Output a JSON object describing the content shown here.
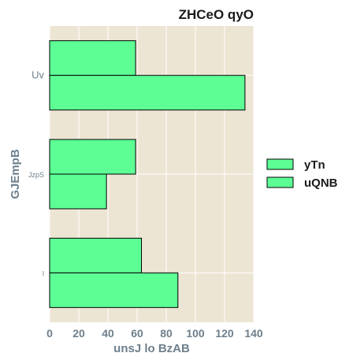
{
  "chart_data": {
    "type": "bar",
    "orientation": "horizontal",
    "title": "ZHCeO qyO",
    "xlabel": "unsJ lo BzAB",
    "ylabel": "GJEmpB",
    "categories": [
      "Uv",
      "JzpS",
      "l"
    ],
    "xlim": [
      0,
      140
    ],
    "xticks": [
      0,
      20,
      40,
      60,
      80,
      100,
      120,
      140
    ],
    "grid": true,
    "legend_position": "right",
    "series": [
      {
        "name": "yTn",
        "values": [
          59,
          59,
          63
        ],
        "color": "#5dff95"
      },
      {
        "name": "uQNB",
        "values": [
          134,
          39,
          88
        ],
        "color": "#5dff95"
      }
    ],
    "plot_background": "#ede5d3",
    "bar_edge_color": "#000000"
  }
}
